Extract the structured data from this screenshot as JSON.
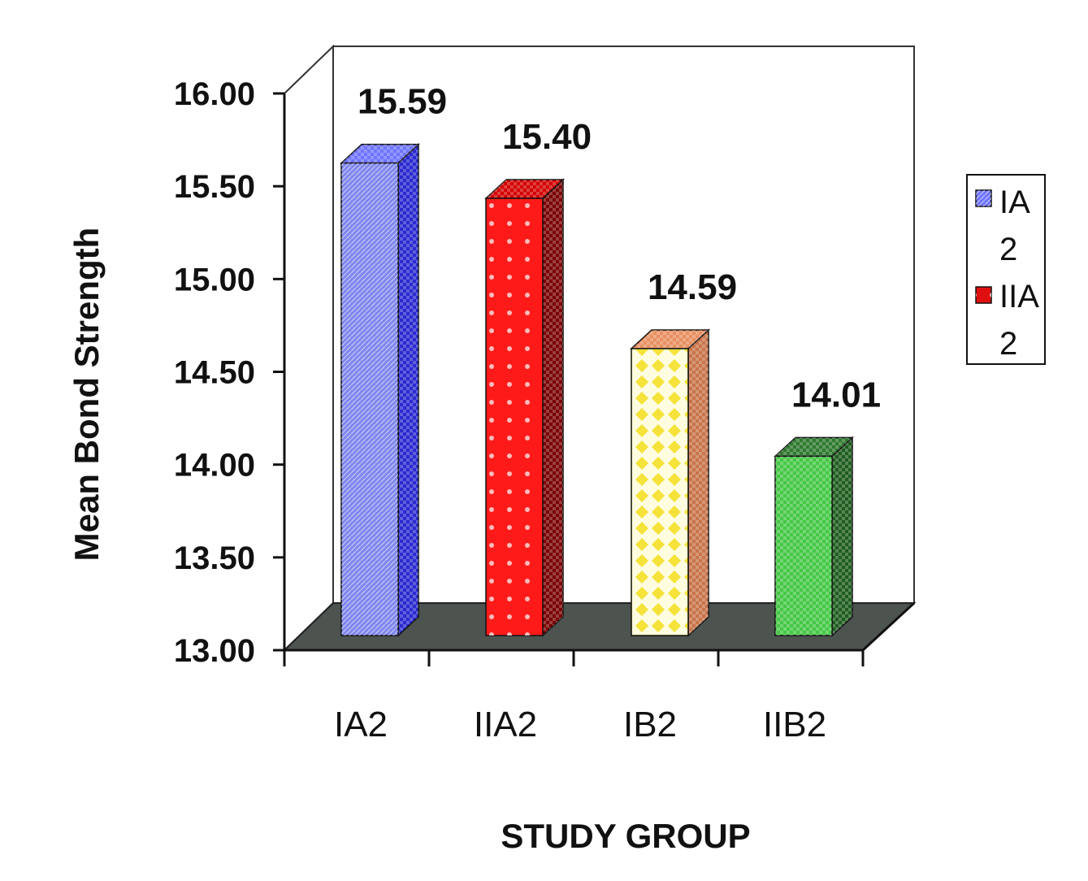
{
  "chart_data": {
    "type": "bar",
    "style": "3d-column",
    "categories": [
      "IA2",
      "IIA2",
      "IB2",
      "IIB2"
    ],
    "values": [
      15.59,
      15.4,
      14.59,
      14.01
    ],
    "data_labels": [
      "15.59",
      "15.40",
      "14.59",
      "14.01"
    ],
    "colors": [
      "#7f86ee",
      "#ff1a1a",
      "#fff36a",
      "#45c845"
    ],
    "side_colors": [
      "#2a2ad0",
      "#7a0000",
      "#c8744a",
      "#1f5d1f"
    ],
    "top_colors": [
      "#6f74ff",
      "#d40000",
      "#e89060",
      "#2f7a2f"
    ],
    "xlabel": "STUDY GROUP",
    "ylabel": "Mean Bond Strength",
    "ylim": [
      13.0,
      16.0
    ],
    "yticks": [
      "13.00",
      "13.50",
      "14.00",
      "14.50",
      "15.00",
      "15.50",
      "16.00"
    ],
    "grid": false,
    "legend": {
      "placement": "right",
      "entries": [
        {
          "line1": "IA",
          "line2": "2",
          "color": "#6f74ff"
        },
        {
          "line1": "IIA",
          "line2": "2",
          "color": "#e01010"
        }
      ]
    }
  }
}
